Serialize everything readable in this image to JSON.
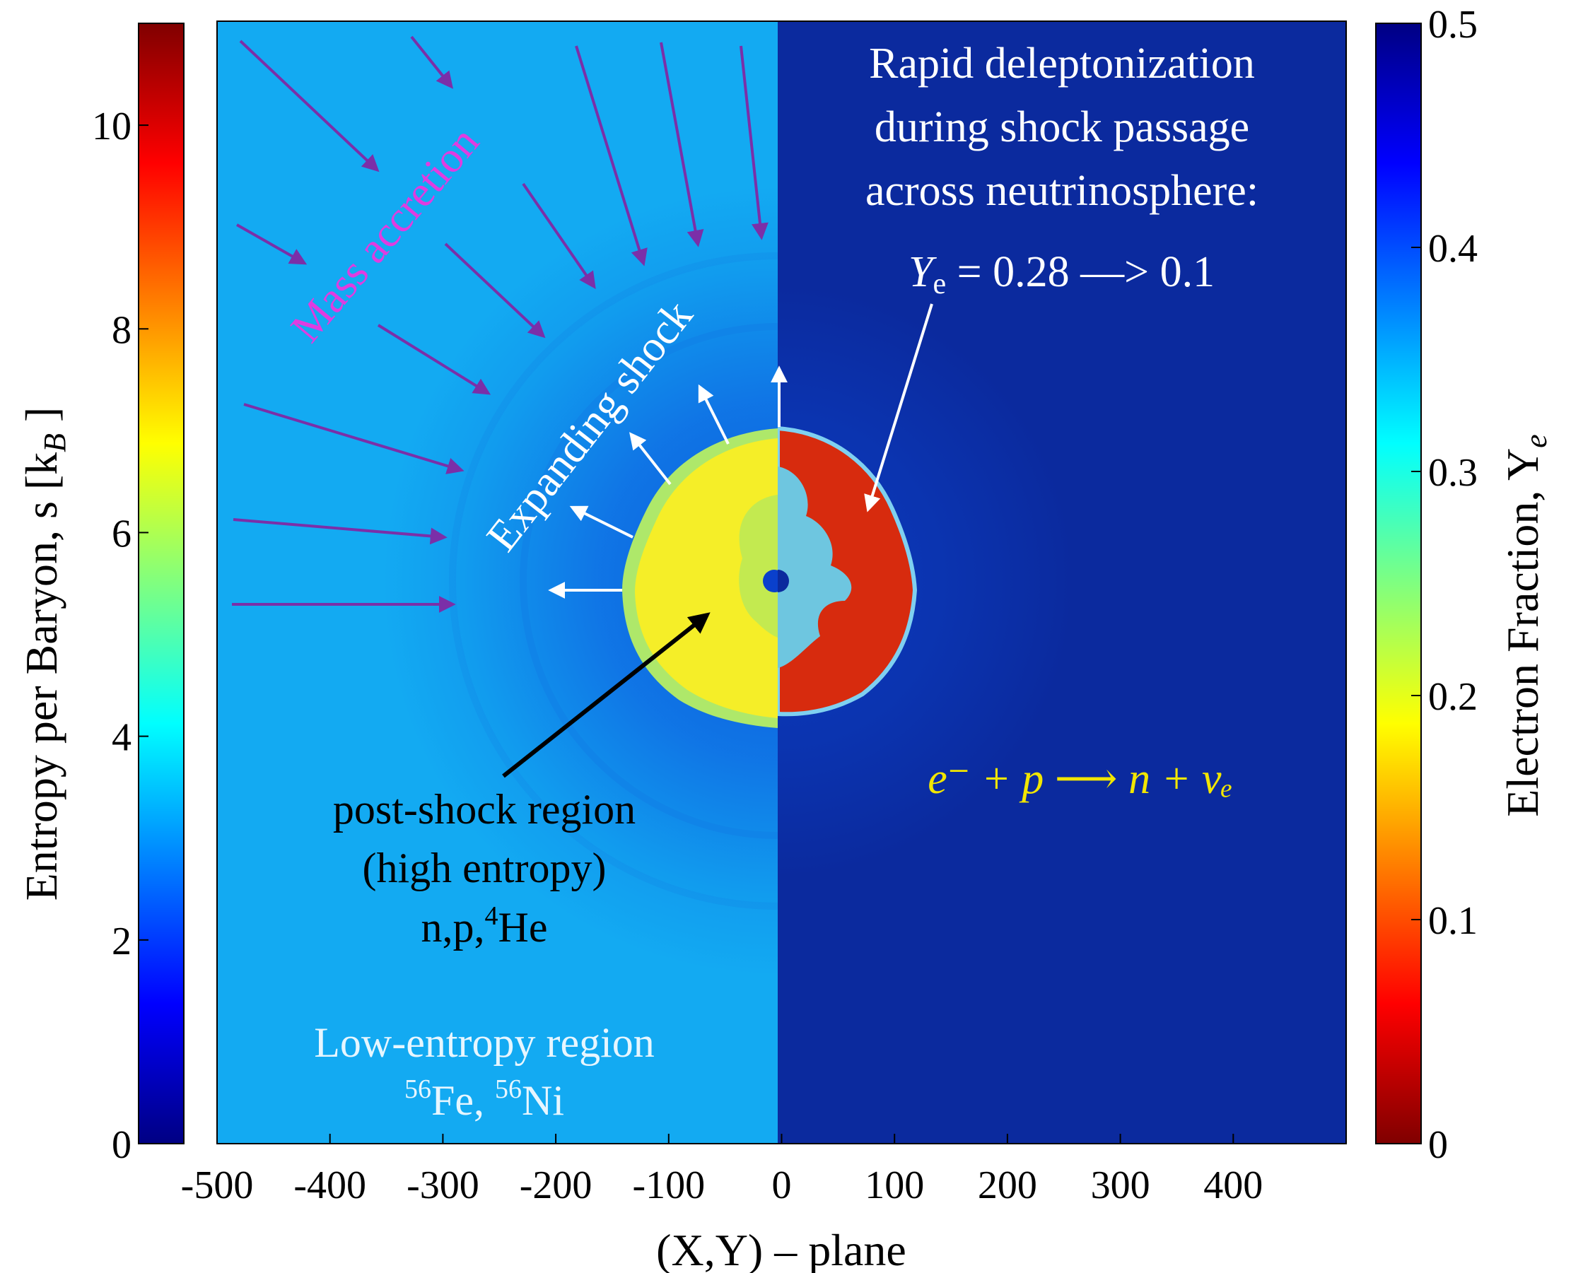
{
  "chart_data": {
    "type": "heatmap",
    "xlabel": "(X,Y) – plane",
    "x_ticks": [
      -500,
      -400,
      -300,
      -200,
      -100,
      0,
      100,
      200,
      300,
      400
    ],
    "xlim": [
      -500,
      500
    ],
    "left_colorbar": {
      "label_main": "Entropy per Baryon, s [k",
      "label_sub": "B",
      "label_end": " ]",
      "ticks": [
        0,
        2,
        4,
        6,
        8,
        10
      ],
      "range": [
        0,
        11
      ],
      "colormap": "jet"
    },
    "right_colorbar": {
      "label_main": "Electron Fraction, Y",
      "label_sub": "e",
      "ticks": [
        "0",
        "0.1",
        "0.2",
        "0.3",
        "0.4",
        "0.5"
      ],
      "tick_values": [
        0,
        0.1,
        0.2,
        0.3,
        0.4,
        0.5
      ],
      "range": [
        0,
        0.5
      ],
      "colormap": "jet_r"
    },
    "left_half": {
      "quantity": "entropy",
      "background_color": "#13aaf2",
      "region_color": "#f7f024"
    },
    "right_half": {
      "quantity": "electron fraction",
      "background_color": "#0b2a9e",
      "region_color": "#d72b0e"
    },
    "annotations": {
      "mass_accretion": "Mass accretion",
      "expanding_shock": "Expanding shock",
      "post_shock_1": "post-shock region",
      "post_shock_2": "(high entropy)",
      "post_shock_3a": "n,p,",
      "post_shock_3_sup": "4",
      "post_shock_3b": "He",
      "low_entropy_1": "Low-entropy region",
      "low_entropy_sup1": "56",
      "low_entropy_2a": "Fe, ",
      "low_entropy_sup2": "56",
      "low_entropy_2b": "Ni",
      "deleptonization_1": "Rapid deleptonization",
      "deleptonization_2": "during shock passage",
      "deleptonization_3": "across neutrinosphere:",
      "ye_symbol": "Y",
      "ye_sub": "e",
      "ye_change": " = 0.28 —> 0.1",
      "reaction": "e⁻ + p ⟶ n + νₑ"
    },
    "colors": {
      "accretion_arrows": "#7b2fa8",
      "mass_accretion_text": "#e03ce0",
      "shock_arrows": "#ffffff",
      "reaction_text": "#f2e600"
    }
  }
}
